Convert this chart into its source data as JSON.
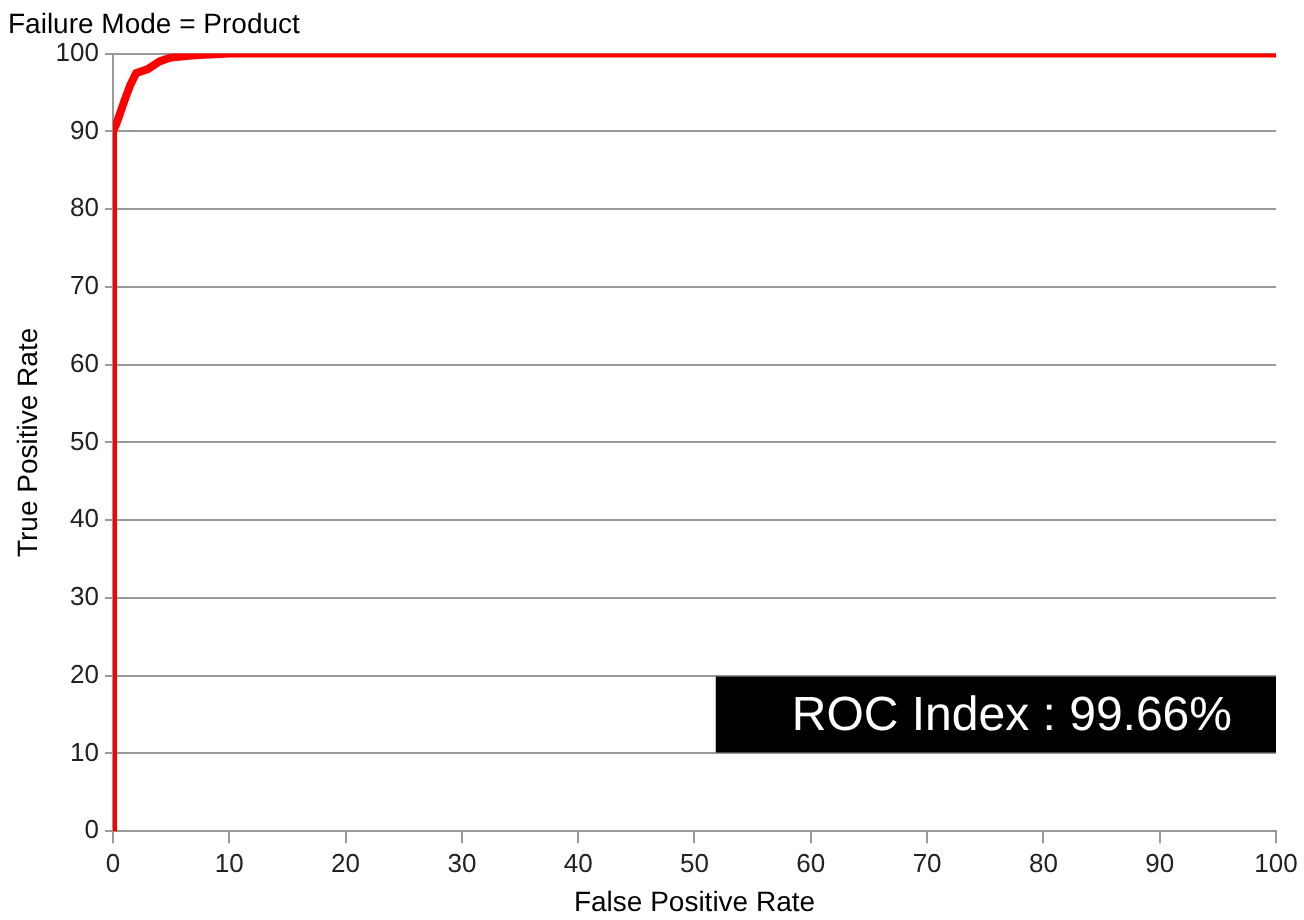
{
  "chart_data": {
    "type": "line",
    "title": "Failure Mode = Product",
    "xlabel": "False Positive Rate",
    "ylabel": "True Positive Rate",
    "x": [
      0,
      0,
      0.3,
      1,
      1.5,
      2,
      3,
      4,
      5,
      7,
      10,
      100
    ],
    "series": [
      {
        "color": "#ff0000",
        "values": [
          0,
          90,
          91,
          94,
          96,
          97.5,
          98,
          99,
          99.5,
          99.8,
          100,
          100
        ]
      }
    ],
    "xlim": [
      0,
      100
    ],
    "xticks": [
      0,
      10,
      20,
      30,
      40,
      50,
      60,
      70,
      80,
      90,
      100
    ],
    "ylim": [
      0,
      100
    ],
    "yticks": [
      0,
      10,
      20,
      30,
      40,
      50,
      60,
      70,
      80,
      90,
      100
    ],
    "grid": "y",
    "legend": false,
    "marker": "none",
    "line_style": "solid",
    "annotations": [
      "ROC Index : 99.66%"
    ]
  }
}
